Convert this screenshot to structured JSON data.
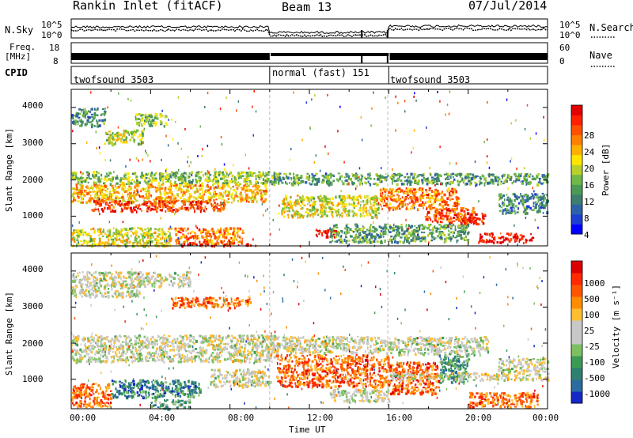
{
  "header": {
    "station": "Rankin Inlet (fitACF)",
    "beam": "Beam 13",
    "date": "07/Jul/2014"
  },
  "top_panel": {
    "left_label": "N.Sky",
    "right_label": "N.Search",
    "left_ticks": [
      "10^5",
      "10^0"
    ],
    "right_ticks": [
      "10^5",
      "10^0"
    ]
  },
  "freq_panel": {
    "label_line1": "Freq.",
    "label_line2": "[MHz]",
    "left_ticks": [
      "18",
      "8"
    ],
    "right_label": "Nave",
    "right_ticks": [
      "60",
      "0"
    ]
  },
  "cpid": {
    "label": "CPID",
    "segments": [
      {
        "label": "twofsound 3503",
        "start": 0,
        "end": 10
      },
      {
        "label": "normal (fast) 151",
        "start": 10,
        "end": 16
      },
      {
        "label": "twofsound 3503",
        "start": 16,
        "end": 24
      }
    ]
  },
  "chart_data": [
    {
      "type": "heatmap",
      "quantity": "Power",
      "ylabel": "Slant Range [km]",
      "yticks": [
        1000,
        2000,
        3000,
        4000
      ],
      "ylim": [
        180,
        4500
      ],
      "xlim": [
        0,
        24
      ],
      "colorbar": {
        "label": "Power [dB]",
        "ticks": [
          "28",
          "24",
          "20",
          "16",
          "12",
          "8",
          "4"
        ],
        "colors": [
          "#0000ff",
          "#1e3dd2",
          "#2e62a8",
          "#3e7d70",
          "#4a9a54",
          "#70b848",
          "#b8d028",
          "#ffe600",
          "#ffb000",
          "#ff8000",
          "#ff5000",
          "#ff2000",
          "#e00000"
        ]
      },
      "echo_regions": [
        {
          "t0": 0.0,
          "t1": 10.2,
          "r0": 1900,
          "r1": 2250,
          "level": 0.45
        },
        {
          "t0": 0.0,
          "t1": 9.8,
          "r0": 1400,
          "r1": 1900,
          "level": 0.65
        },
        {
          "t0": 1.0,
          "t1": 7.8,
          "r0": 1150,
          "r1": 1450,
          "level": 0.85
        },
        {
          "t0": 0.0,
          "t1": 5.0,
          "r0": 200,
          "r1": 700,
          "level": 0.55
        },
        {
          "t0": 5.2,
          "t1": 8.6,
          "r0": 250,
          "r1": 700,
          "level": 0.75
        },
        {
          "t0": 0.0,
          "t1": 1.7,
          "r0": 3500,
          "r1": 4000,
          "level": 0.3
        },
        {
          "t0": 1.6,
          "t1": 3.6,
          "r0": 3000,
          "r1": 3400,
          "level": 0.5
        },
        {
          "t0": 3.2,
          "t1": 4.8,
          "r0": 3500,
          "r1": 3850,
          "level": 0.45
        },
        {
          "t0": 5.5,
          "t1": 9.5,
          "r0": 200,
          "r1": 260,
          "level": 0.95
        },
        {
          "t0": 10.0,
          "t1": 24.0,
          "r0": 1900,
          "r1": 2200,
          "level": 0.35
        },
        {
          "t0": 10.5,
          "t1": 15.5,
          "r0": 1000,
          "r1": 1600,
          "level": 0.55
        },
        {
          "t0": 12.3,
          "t1": 13.4,
          "r0": 450,
          "r1": 650,
          "level": 0.95
        },
        {
          "t0": 15.5,
          "t1": 19.5,
          "r0": 1200,
          "r1": 1800,
          "level": 0.75
        },
        {
          "t0": 17.8,
          "t1": 20.3,
          "r0": 850,
          "r1": 1250,
          "level": 0.8
        },
        {
          "t0": 19.6,
          "t1": 20.8,
          "r0": 800,
          "r1": 1100,
          "level": 0.92
        },
        {
          "t0": 20.5,
          "t1": 23.2,
          "r0": 300,
          "r1": 550,
          "level": 0.95
        },
        {
          "t0": 13.0,
          "t1": 20.0,
          "r0": 300,
          "r1": 800,
          "level": 0.35
        },
        {
          "t0": 21.5,
          "t1": 24.0,
          "r0": 1100,
          "r1": 1650,
          "level": 0.3
        }
      ]
    },
    {
      "type": "heatmap",
      "quantity": "Velocity",
      "ylabel": "Slant Range [km]",
      "xlabel": "Time UT",
      "yticks": [
        1000,
        2000,
        3000,
        4000
      ],
      "ylim": [
        180,
        4500
      ],
      "xlim": [
        0,
        24
      ],
      "xticks": [
        "00:00",
        "04:00",
        "08:00",
        "12:00",
        "16:00",
        "20:00",
        "00:00"
      ],
      "colorbar": {
        "label": "Velocity [m s⁻¹]",
        "ticks": [
          "1000",
          "500",
          "100",
          "25",
          "-25",
          "-100",
          "-500",
          "-1000"
        ],
        "colors": [
          "#1428c8",
          "#2a6ca0",
          "#2f8070",
          "#3c9a55",
          "#7cc062",
          "#c8c8c8",
          "#c8c8c8",
          "#ffbe30",
          "#ff8c00",
          "#ff5500",
          "#ff2800",
          "#dc0000"
        ]
      },
      "echo_regions": [
        {
          "t0": 0.0,
          "t1": 10.2,
          "r0": 1500,
          "r1": 2250,
          "level": 0.5
        },
        {
          "t0": 10.0,
          "t1": 16.0,
          "r0": 1750,
          "r1": 2200,
          "level": 0.5
        },
        {
          "t0": 16.0,
          "t1": 21.0,
          "r0": 1700,
          "r1": 2200,
          "level": 0.48
        },
        {
          "t0": 0.0,
          "t1": 3.5,
          "r0": 3300,
          "r1": 4000,
          "level": 0.5
        },
        {
          "t0": 3.0,
          "t1": 6.0,
          "r0": 3600,
          "r1": 4000,
          "level": 0.5
        },
        {
          "t0": 10.3,
          "t1": 16.0,
          "r0": 800,
          "r1": 1700,
          "level": 0.78
        },
        {
          "t0": 16.0,
          "t1": 18.5,
          "r0": 600,
          "r1": 1500,
          "level": 0.8
        },
        {
          "t0": 18.5,
          "t1": 20.0,
          "r0": 900,
          "r1": 1700,
          "level": 0.25
        },
        {
          "t0": 20.0,
          "t1": 23.5,
          "r0": 250,
          "r1": 650,
          "level": 0.76
        },
        {
          "t0": 0.0,
          "t1": 2.0,
          "r0": 250,
          "r1": 900,
          "level": 0.78
        },
        {
          "t0": 2.0,
          "t1": 6.5,
          "r0": 500,
          "r1": 1000,
          "level": 0.22
        },
        {
          "t0": 4.0,
          "t1": 6.0,
          "r0": 200,
          "r1": 450,
          "level": 0.3
        },
        {
          "t0": 7.0,
          "t1": 10.0,
          "r0": 800,
          "r1": 1300,
          "level": 0.5
        },
        {
          "t0": 13.0,
          "t1": 16.0,
          "r0": 400,
          "r1": 750,
          "level": 0.5
        },
        {
          "t0": 21.5,
          "t1": 24.0,
          "r0": 1200,
          "r1": 1600,
          "level": 0.5
        },
        {
          "t0": 16.0,
          "t1": 24.0,
          "r0": 1000,
          "r1": 1200,
          "level": 0.5
        },
        {
          "t0": 5.0,
          "t1": 9.0,
          "r0": 3000,
          "r1": 3300,
          "level": 0.75
        }
      ]
    }
  ]
}
